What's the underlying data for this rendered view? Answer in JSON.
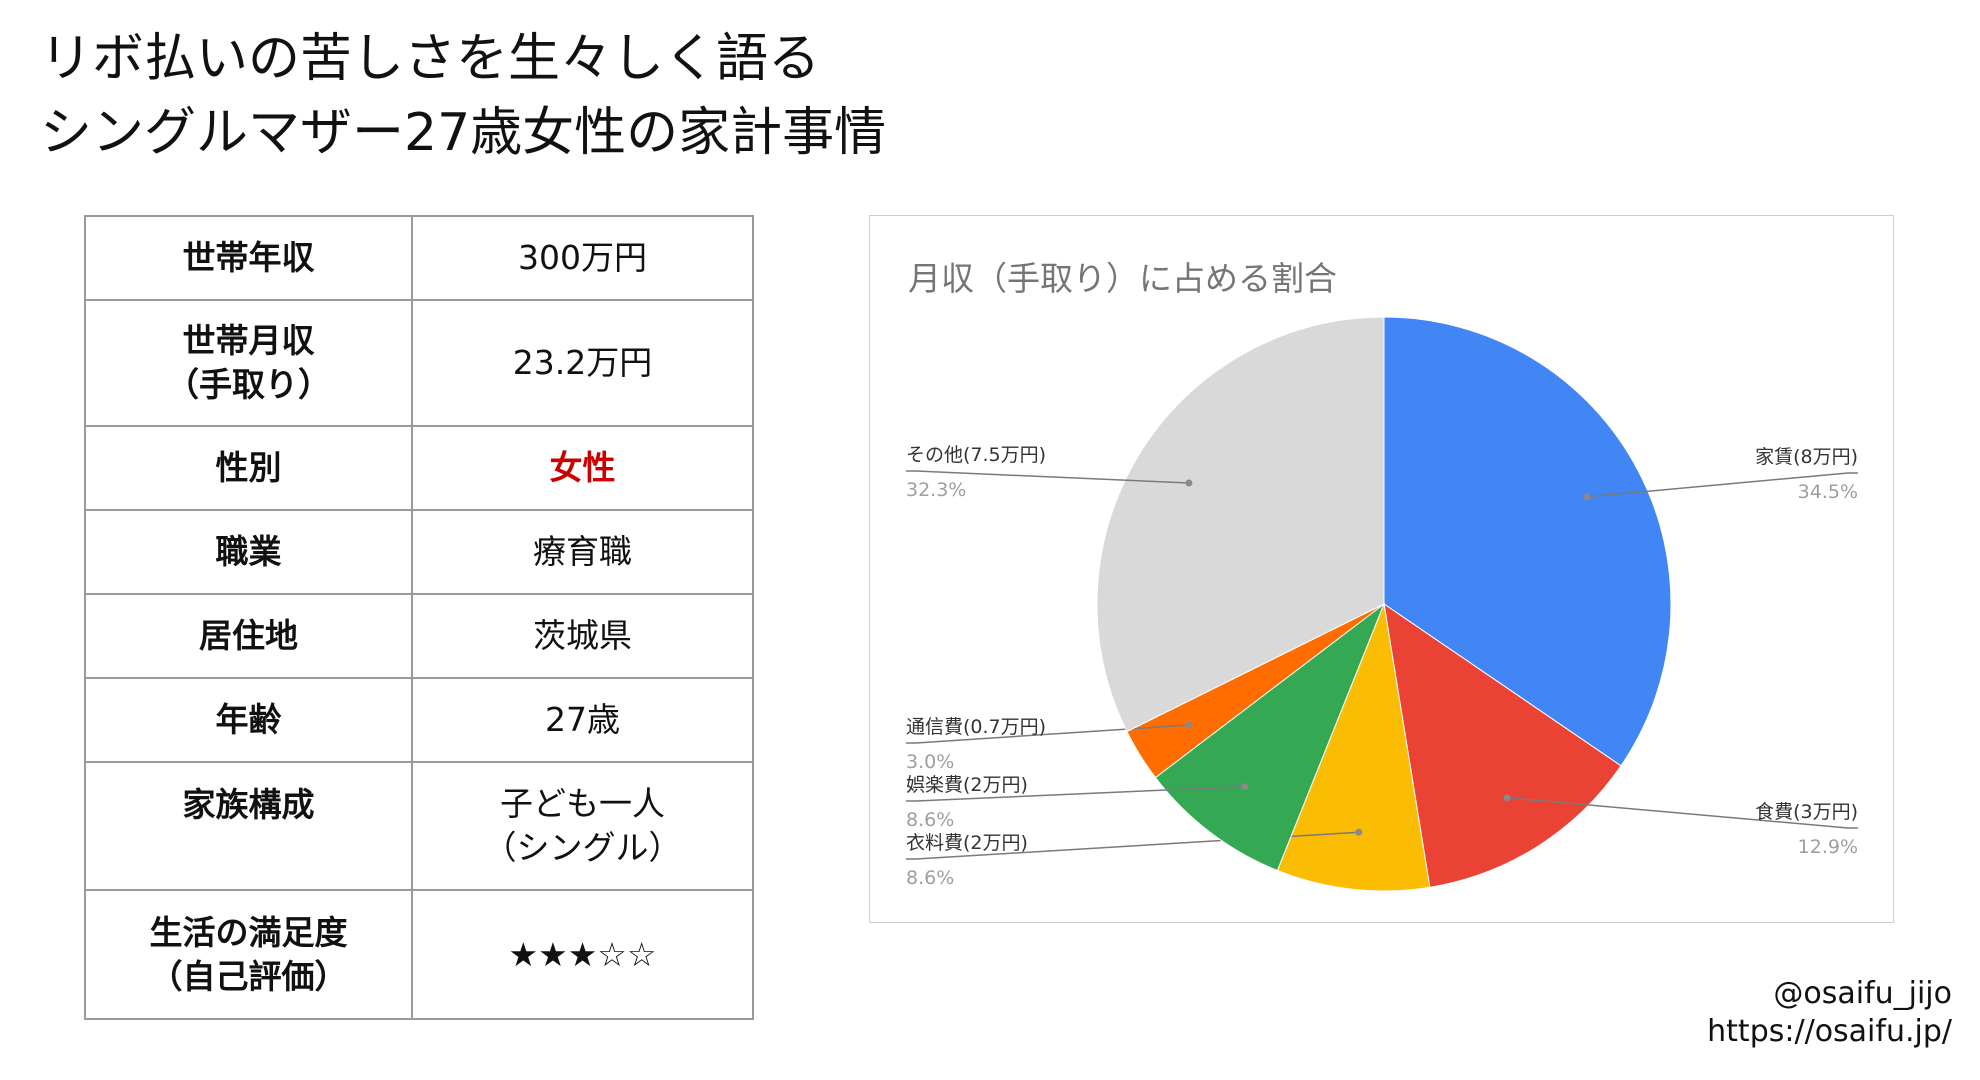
{
  "title": {
    "line1": "リボ払いの苦しさを生々しく語る",
    "line2": "シングルマザー27歳女性の家計事情"
  },
  "profile": [
    {
      "label": [
        "世帯年収"
      ],
      "value": [
        "300万円"
      ]
    },
    {
      "label": [
        "世帯月収",
        "（手取り）"
      ],
      "value": [
        "23.2万円"
      ]
    },
    {
      "label": [
        "性別"
      ],
      "value": [
        "女性"
      ]
    },
    {
      "label": [
        "職業"
      ],
      "value": [
        "療育職"
      ]
    },
    {
      "label": [
        "居住地"
      ],
      "value": [
        "茨城県"
      ]
    },
    {
      "label": [
        "年齢"
      ],
      "value": [
        "27歳"
      ]
    },
    {
      "label": [
        "家族構成"
      ],
      "value": [
        "子ども一人",
        "（シングル）"
      ]
    },
    {
      "label": [
        "生活の満足度",
        "（自己評価）"
      ],
      "value": [
        "★★★☆☆"
      ]
    }
  ],
  "chart_data": {
    "type": "pie",
    "title": "月収（手取り）に占める割合",
    "slices": [
      {
        "label": "家賃(8万円)",
        "percent_text": "34.5%",
        "value": 34.5,
        "color": "#4285f4"
      },
      {
        "label": "食費(3万円)",
        "percent_text": "12.9%",
        "value": 12.9,
        "color": "#ea4335"
      },
      {
        "label": "衣料費(2万円)",
        "percent_text": "8.6%",
        "value": 8.6,
        "color": "#fbbc04"
      },
      {
        "label": "娯楽費(2万円)",
        "percent_text": "8.6%",
        "value": 8.6,
        "color": "#34a853"
      },
      {
        "label": "通信費(0.7万円)",
        "percent_text": "3.0%",
        "value": 3.0,
        "color": "#ff6d01"
      },
      {
        "label": "その他(7.5万円)",
        "percent_text": "32.3%",
        "value": 32.3,
        "color": "#d9d9d9"
      }
    ]
  },
  "credit": {
    "handle": "@osaifu_jijo",
    "url": "https://osaifu.jp/"
  }
}
